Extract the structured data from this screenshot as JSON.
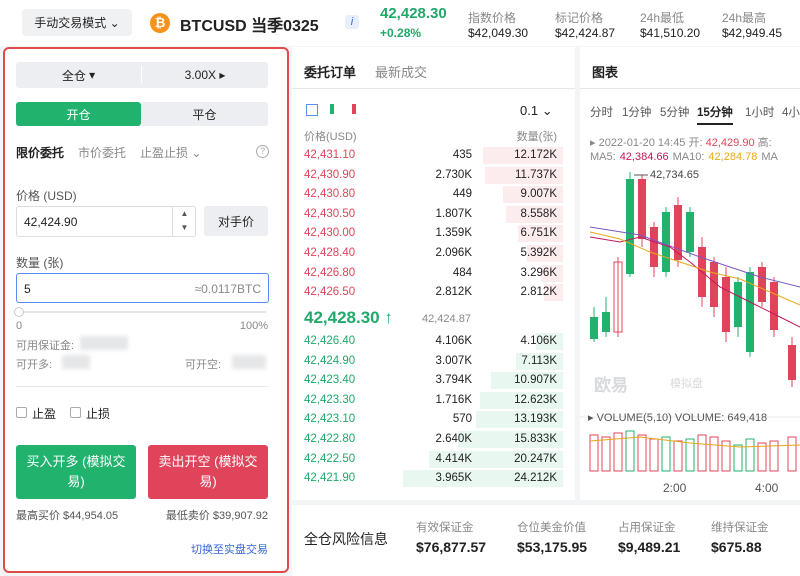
{
  "header": {
    "mode": "手动交易模式",
    "symbol": "BTCUSD 当季0325",
    "info_icon": "i",
    "price": "42,428.30",
    "change": "+0.28%",
    "stats": [
      {
        "label": "指数价格",
        "value": "$42,049.30"
      },
      {
        "label": "标记价格",
        "value": "$42,424.87"
      },
      {
        "label": "24h最低",
        "value": "$41,510.20"
      },
      {
        "label": "24h最高",
        "value": "$42,949.45"
      }
    ]
  },
  "order_panel": {
    "margin_mode": "全仓",
    "leverage": "3.00X",
    "tabs": [
      "开仓",
      "平仓"
    ],
    "order_types": [
      "限价委托",
      "市价委托",
      "止盈止损"
    ],
    "price_label": "价格 (USD)",
    "price_value": "42,424.90",
    "counter_price": "对手价",
    "qty_label": "数量 (张)",
    "qty_value": "5",
    "qty_btc": "≈0.0117BTC",
    "slider_min": "0",
    "slider_max": "100%",
    "available_margin": "可用保证金:",
    "can_open_long": "可开多:",
    "can_open_short": "可开空:",
    "take_profit": "止盈",
    "stop_loss": "止损",
    "buy_button": "买入开多 (模拟交易)",
    "sell_button": "卖出开空 (模拟交易)",
    "max_buy": "最高买价 $44,954.05",
    "min_sell": "最低卖价 $39,907.92",
    "switch_link": "切换至实盘交易"
  },
  "order_book": {
    "tabs": [
      "委托订单",
      "最新成交"
    ],
    "precision": "0.1",
    "headers": [
      "价格(USD)",
      "数量(张)"
    ],
    "asks": [
      {
        "price": "42,431.10",
        "qty": "435",
        "total": "12.172K"
      },
      {
        "price": "42,430.90",
        "qty": "2.730K",
        "total": "11.737K"
      },
      {
        "price": "42,430.80",
        "qty": "449",
        "total": "9.007K"
      },
      {
        "price": "42,430.50",
        "qty": "1.807K",
        "total": "8.558K"
      },
      {
        "price": "42,430.00",
        "qty": "1.359K",
        "total": "6.751K"
      },
      {
        "price": "42,428.40",
        "qty": "2.096K",
        "total": "5.392K"
      },
      {
        "price": "42,426.80",
        "qty": "484",
        "total": "3.296K"
      },
      {
        "price": "42,426.50",
        "qty": "2.812K",
        "total": "2.812K"
      }
    ],
    "last_price": "42,428.30 ↑",
    "mark_price": "42,424.87",
    "bids": [
      {
        "price": "42,426.40",
        "qty": "4.106K",
        "total": "4.106K"
      },
      {
        "price": "42,424.90",
        "qty": "3.007K",
        "total": "7.113K"
      },
      {
        "price": "42,423.40",
        "qty": "3.794K",
        "total": "10.907K"
      },
      {
        "price": "42,423.30",
        "qty": "1.716K",
        "total": "12.623K"
      },
      {
        "price": "42,423.10",
        "qty": "570",
        "total": "13.193K"
      },
      {
        "price": "42,422.80",
        "qty": "2.640K",
        "total": "15.833K"
      },
      {
        "price": "42,422.50",
        "qty": "4.414K",
        "total": "20.247K"
      },
      {
        "price": "42,421.90",
        "qty": "3.965K",
        "total": "24.212K"
      }
    ]
  },
  "chart_panel": {
    "title": "图表",
    "intervals": [
      "分时",
      "1分钟",
      "5分钟",
      "15分钟",
      "1小时",
      "4小"
    ],
    "active_interval": 3,
    "time": "2022-01-20 14:45",
    "open_label": "开:",
    "open": "42,429.90",
    "high_label": "高:",
    "ma": [
      {
        "label": "MA5:",
        "value": "42,384.66",
        "color": "#c2185b"
      },
      {
        "label": "MA10:",
        "value": "42,284.78",
        "color": "#e6a817"
      },
      {
        "label": "MA",
        "value": "",
        "color": "#888"
      }
    ],
    "peak": "42,734.65",
    "watermark": "欧易",
    "watermark_sub": "模拟盘",
    "volume_title": "VOLUME(5,10)",
    "volume": "VOLUME: 649,418",
    "times": [
      "2:00",
      "4:00"
    ]
  },
  "risk": {
    "title": "全仓风险信息",
    "items": [
      {
        "label": "有效保证金",
        "value": "$76,877.57"
      },
      {
        "label": "仓位美金价值",
        "value": "$53,175.95"
      },
      {
        "label": "占用保证金",
        "value": "$9,489.21"
      },
      {
        "label": "维持保证金",
        "value": "$675.88"
      }
    ]
  }
}
